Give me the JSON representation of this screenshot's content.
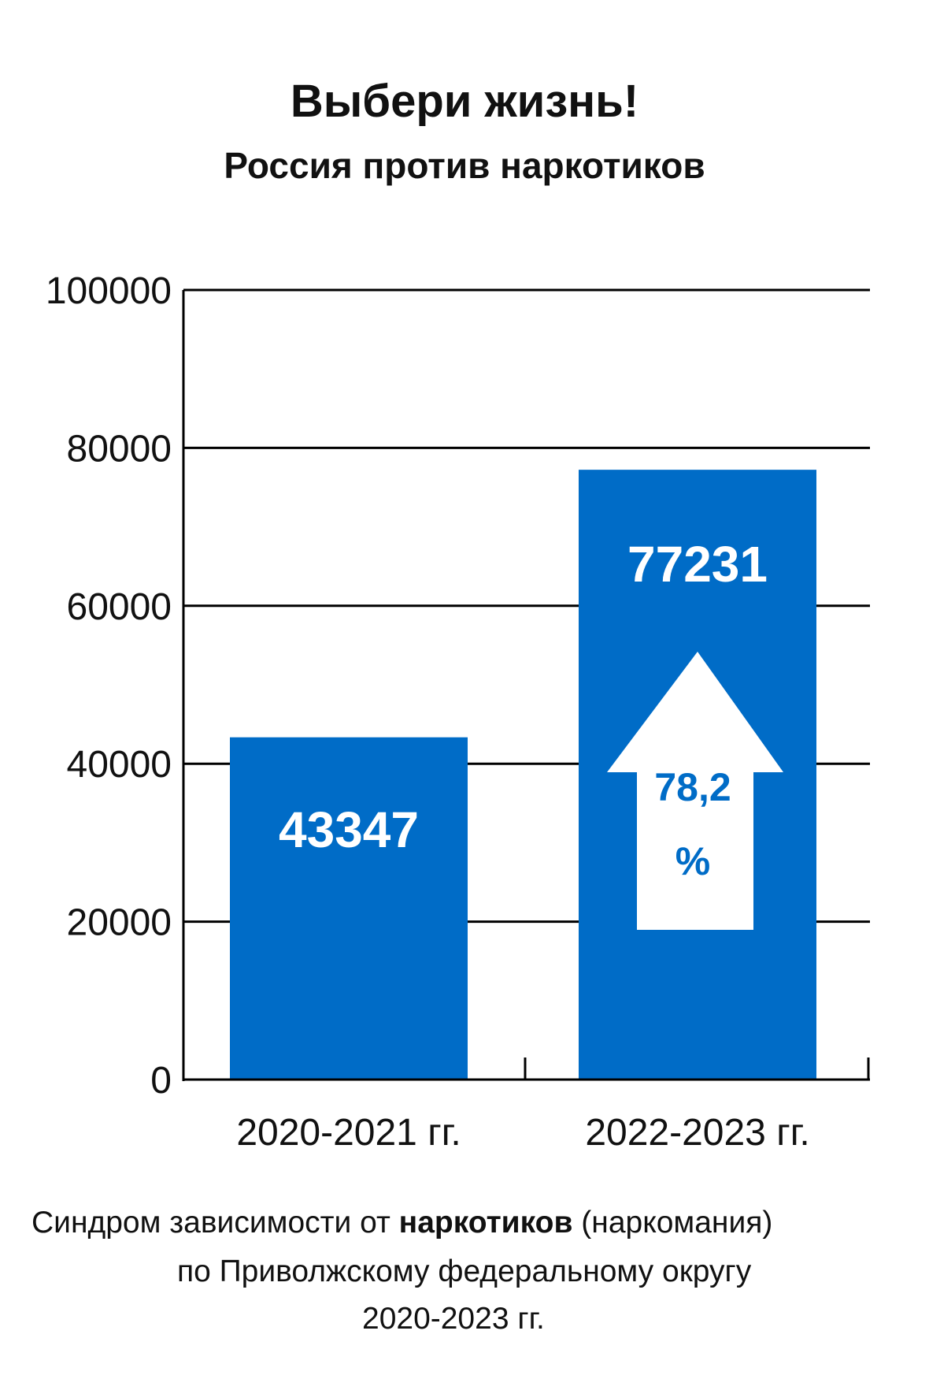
{
  "header": {
    "title": "Выбери жизнь!",
    "subtitle": "Россия против наркотиков"
  },
  "chart_data": {
    "type": "bar",
    "categories": [
      "2020-2021 гг.",
      "2022-2023 гг."
    ],
    "values": [
      43347,
      77231
    ],
    "value_labels": [
      "43347",
      "77231"
    ],
    "ylim": [
      0,
      100000
    ],
    "yticks": [
      "0",
      "20000",
      "40000",
      "60000",
      "80000",
      "100000"
    ],
    "grid": true,
    "bar_color": "#006CC7",
    "arrow_annotation": {
      "text_line1": "78,2",
      "text_line2": "%",
      "text_color": "#006CC7"
    }
  },
  "caption": {
    "line1_pre": "Синдром зависимости  от ",
    "line1_bold": "наркотиков",
    "line1_post": " (наркомания)",
    "line2": "по Приволжскому федеральному округу",
    "line3": "2020-2023 гг."
  }
}
